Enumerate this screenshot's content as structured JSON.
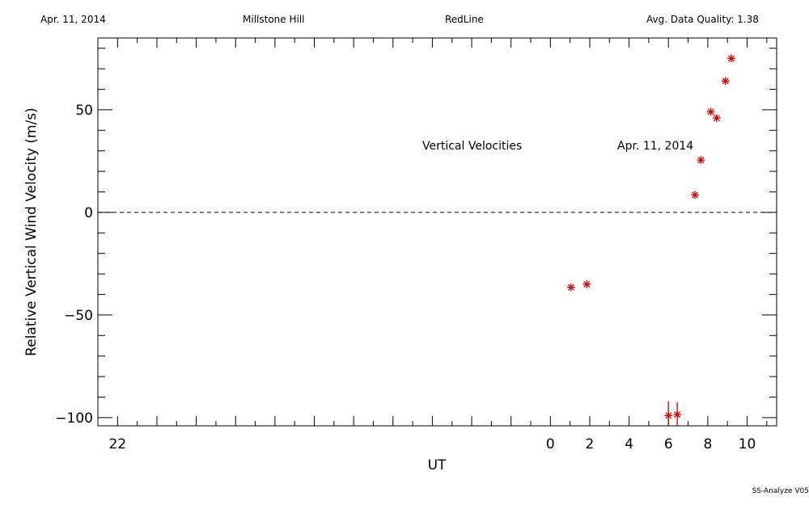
{
  "header": {
    "date": "Apr. 11, 2014",
    "site": "Millstone Hill",
    "line": "RedLine",
    "quality": "Avg. Data Quality: 1.38"
  },
  "footer": {
    "version": "SS-Analyze V05"
  },
  "chart_data": {
    "type": "scatter",
    "xlabel": "UT",
    "ylabel": "Relative Vertical Wind Velocity (m/s)",
    "annotations": [
      "Vertical Velocities",
      "Apr. 11, 2014"
    ],
    "xlim": [
      -23,
      11.5
    ],
    "ylim": [
      -104,
      85
    ],
    "x_tick_labels": [
      "22",
      "0",
      "2",
      "4",
      "6",
      "8",
      "10"
    ],
    "x_tick_values": [
      -22,
      0,
      2,
      4,
      6,
      8,
      10
    ],
    "y_ticks": [
      -100,
      -50,
      0,
      50
    ],
    "zero_line": true,
    "grid": false,
    "marker_color": "#cc0000",
    "series": [
      {
        "points": [
          {
            "x": 1.05,
            "y": -36.5
          },
          {
            "x": 1.85,
            "y": -35
          },
          {
            "x": 6.0,
            "y": -99,
            "err": 7
          },
          {
            "x": 6.45,
            "y": -98.5,
            "err": 6
          },
          {
            "x": 7.35,
            "y": 8.5
          },
          {
            "x": 7.65,
            "y": 25.5
          },
          {
            "x": 8.15,
            "y": 49
          },
          {
            "x": 8.45,
            "y": 46
          },
          {
            "x": 8.9,
            "y": 64
          },
          {
            "x": 9.2,
            "y": 75
          }
        ]
      }
    ]
  }
}
